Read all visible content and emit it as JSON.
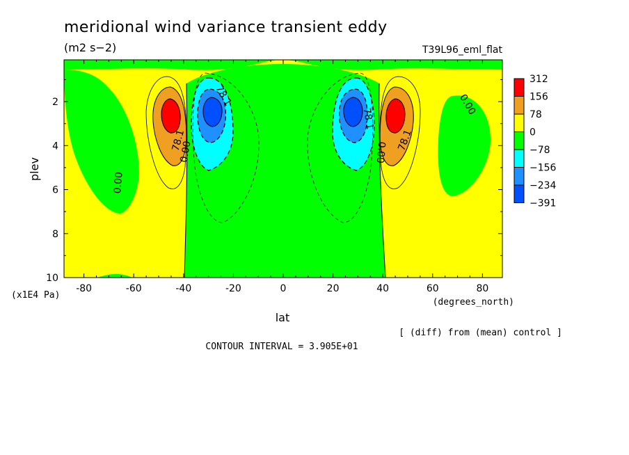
{
  "chart_data": {
    "type": "heatmap",
    "title": "meridional wind variance transient eddy",
    "units": "(m2 s−2)",
    "run": "T39L96_eml_flat",
    "xlabel": "lat",
    "x_units": "(degrees_north)",
    "ylabel": "plev",
    "y_units": "(x1E4 Pa)",
    "diff_note": "[ (diff) from (mean) control ]",
    "contour_interval_text": "CONTOUR INTERVAL = 3.905E+01",
    "xlim": [
      -88,
      88
    ],
    "ylim": [
      0.1,
      10
    ],
    "y_inverted": true,
    "x_ticks": [
      -80,
      -60,
      -40,
      -20,
      0,
      20,
      40,
      60,
      80
    ],
    "y_ticks": [
      2,
      4,
      6,
      8,
      10
    ],
    "legend": {
      "placement": "right",
      "levels": [
        "312",
        "156",
        "78",
        "0",
        "−78",
        "−156",
        "−234",
        "−391"
      ],
      "colors": [
        "#ff0000",
        "#f0a020",
        "#ffff00",
        "#00ff00",
        "#00ffff",
        "#1e90ff",
        "#0050ff"
      ]
    },
    "contour_labels": [
      {
        "text": "78.1",
        "x": -25,
        "y": 1.8,
        "rotate": 60
      },
      {
        "text": "78.1",
        "x": -41,
        "y": 3.8,
        "rotate": -75
      },
      {
        "text": "0.00",
        "x": -38,
        "y": 4.3,
        "rotate": -80
      },
      {
        "text": "0.00",
        "x": -65,
        "y": 5.7,
        "rotate": -85
      },
      {
        "text": "78.1",
        "x": 33,
        "y": 2.8,
        "rotate": 80
      },
      {
        "text": "0.00",
        "x": 38,
        "y": 4.3,
        "rotate": 95
      },
      {
        "text": "78.1",
        "x": 50,
        "y": 3.8,
        "rotate": -70
      },
      {
        "text": "0.00",
        "x": 73,
        "y": 2.2,
        "rotate": 60
      }
    ]
  }
}
